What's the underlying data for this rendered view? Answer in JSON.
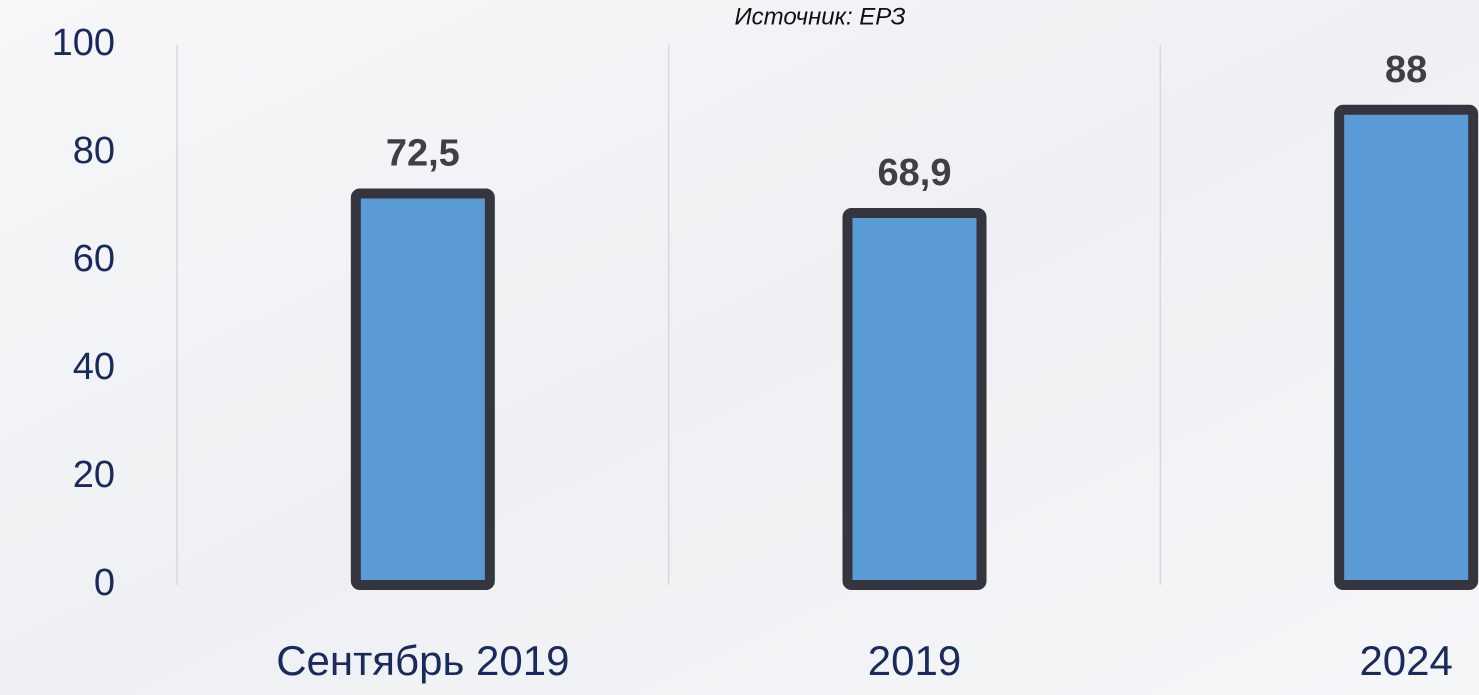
{
  "chart_data": {
    "type": "bar",
    "annotation": "Источник: ЕРЗ",
    "categories": [
      "Сентябрь 2019",
      "2019",
      "2024"
    ],
    "values": [
      72.5,
      68.9,
      88
    ],
    "value_labels": [
      "72,5",
      "68,9",
      "88"
    ],
    "color": "#5b9bd5",
    "ylim": [
      0,
      100
    ],
    "yticks": [
      0,
      20,
      40,
      60,
      80,
      100
    ],
    "grid": false
  }
}
